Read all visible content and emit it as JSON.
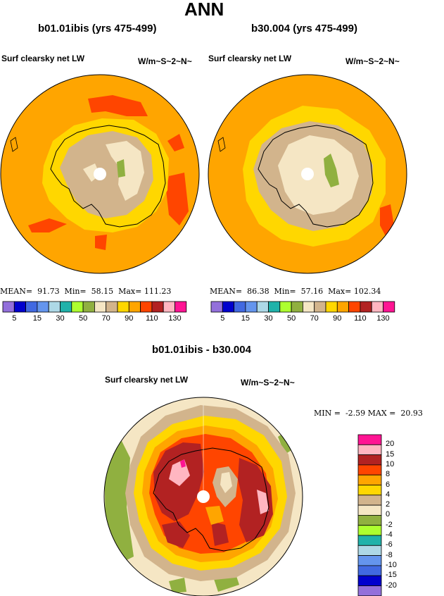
{
  "page": {
    "title": "ANN"
  },
  "colors": {
    "panel_scale": [
      "#9370db",
      "#0000cd",
      "#4169e1",
      "#6495ed",
      "#add8e6",
      "#20b2aa",
      "#adff2f",
      "#90b040",
      "#f5e6c4",
      "#d2b48c",
      "#ffd700",
      "#ffa500",
      "#ff4500",
      "#b22222",
      "#ffb6c1",
      "#ff1493"
    ],
    "diff_scale": [
      "#ff1493",
      "#ffb6c1",
      "#b22222",
      "#ff4500",
      "#ffa500",
      "#ffd700",
      "#d2b48c",
      "#f5e6c4",
      "#90b040",
      "#adff2f",
      "#20b2aa",
      "#add8e6",
      "#6495ed",
      "#4169e1",
      "#0000cd",
      "#9370db"
    ]
  },
  "panels": [
    {
      "case_title": "b01.01ibis (yrs 475-499)",
      "field": "Surf clearsky net LW",
      "units": "W/m~S~2~N~",
      "stats": "MEAN=  91.73  Min=  58.15  Max= 111.23"
    },
    {
      "case_title": "b30.004 (yrs 475-499)",
      "field": "Surf clearsky net LW",
      "units": "W/m~S~2~N~",
      "stats": "MEAN=  86.38  Min=  57.16  Max= 102.34"
    }
  ],
  "panel_ticks": [
    "5",
    "15",
    "30",
    "50",
    "70",
    "90",
    "110",
    "130"
  ],
  "difference": {
    "title": "b01.01ibis - b30.004",
    "field": "Surf clearsky net LW",
    "units": "W/m~S~2~N~",
    "stats": "MIN =  -2.59 MAX =  20.93",
    "ticks": [
      "20",
      "15",
      "10",
      "8",
      "6",
      "4",
      "2",
      "0",
      "-2",
      "-4",
      "-6",
      "-8",
      "-10",
      "-15",
      "-20"
    ]
  }
}
